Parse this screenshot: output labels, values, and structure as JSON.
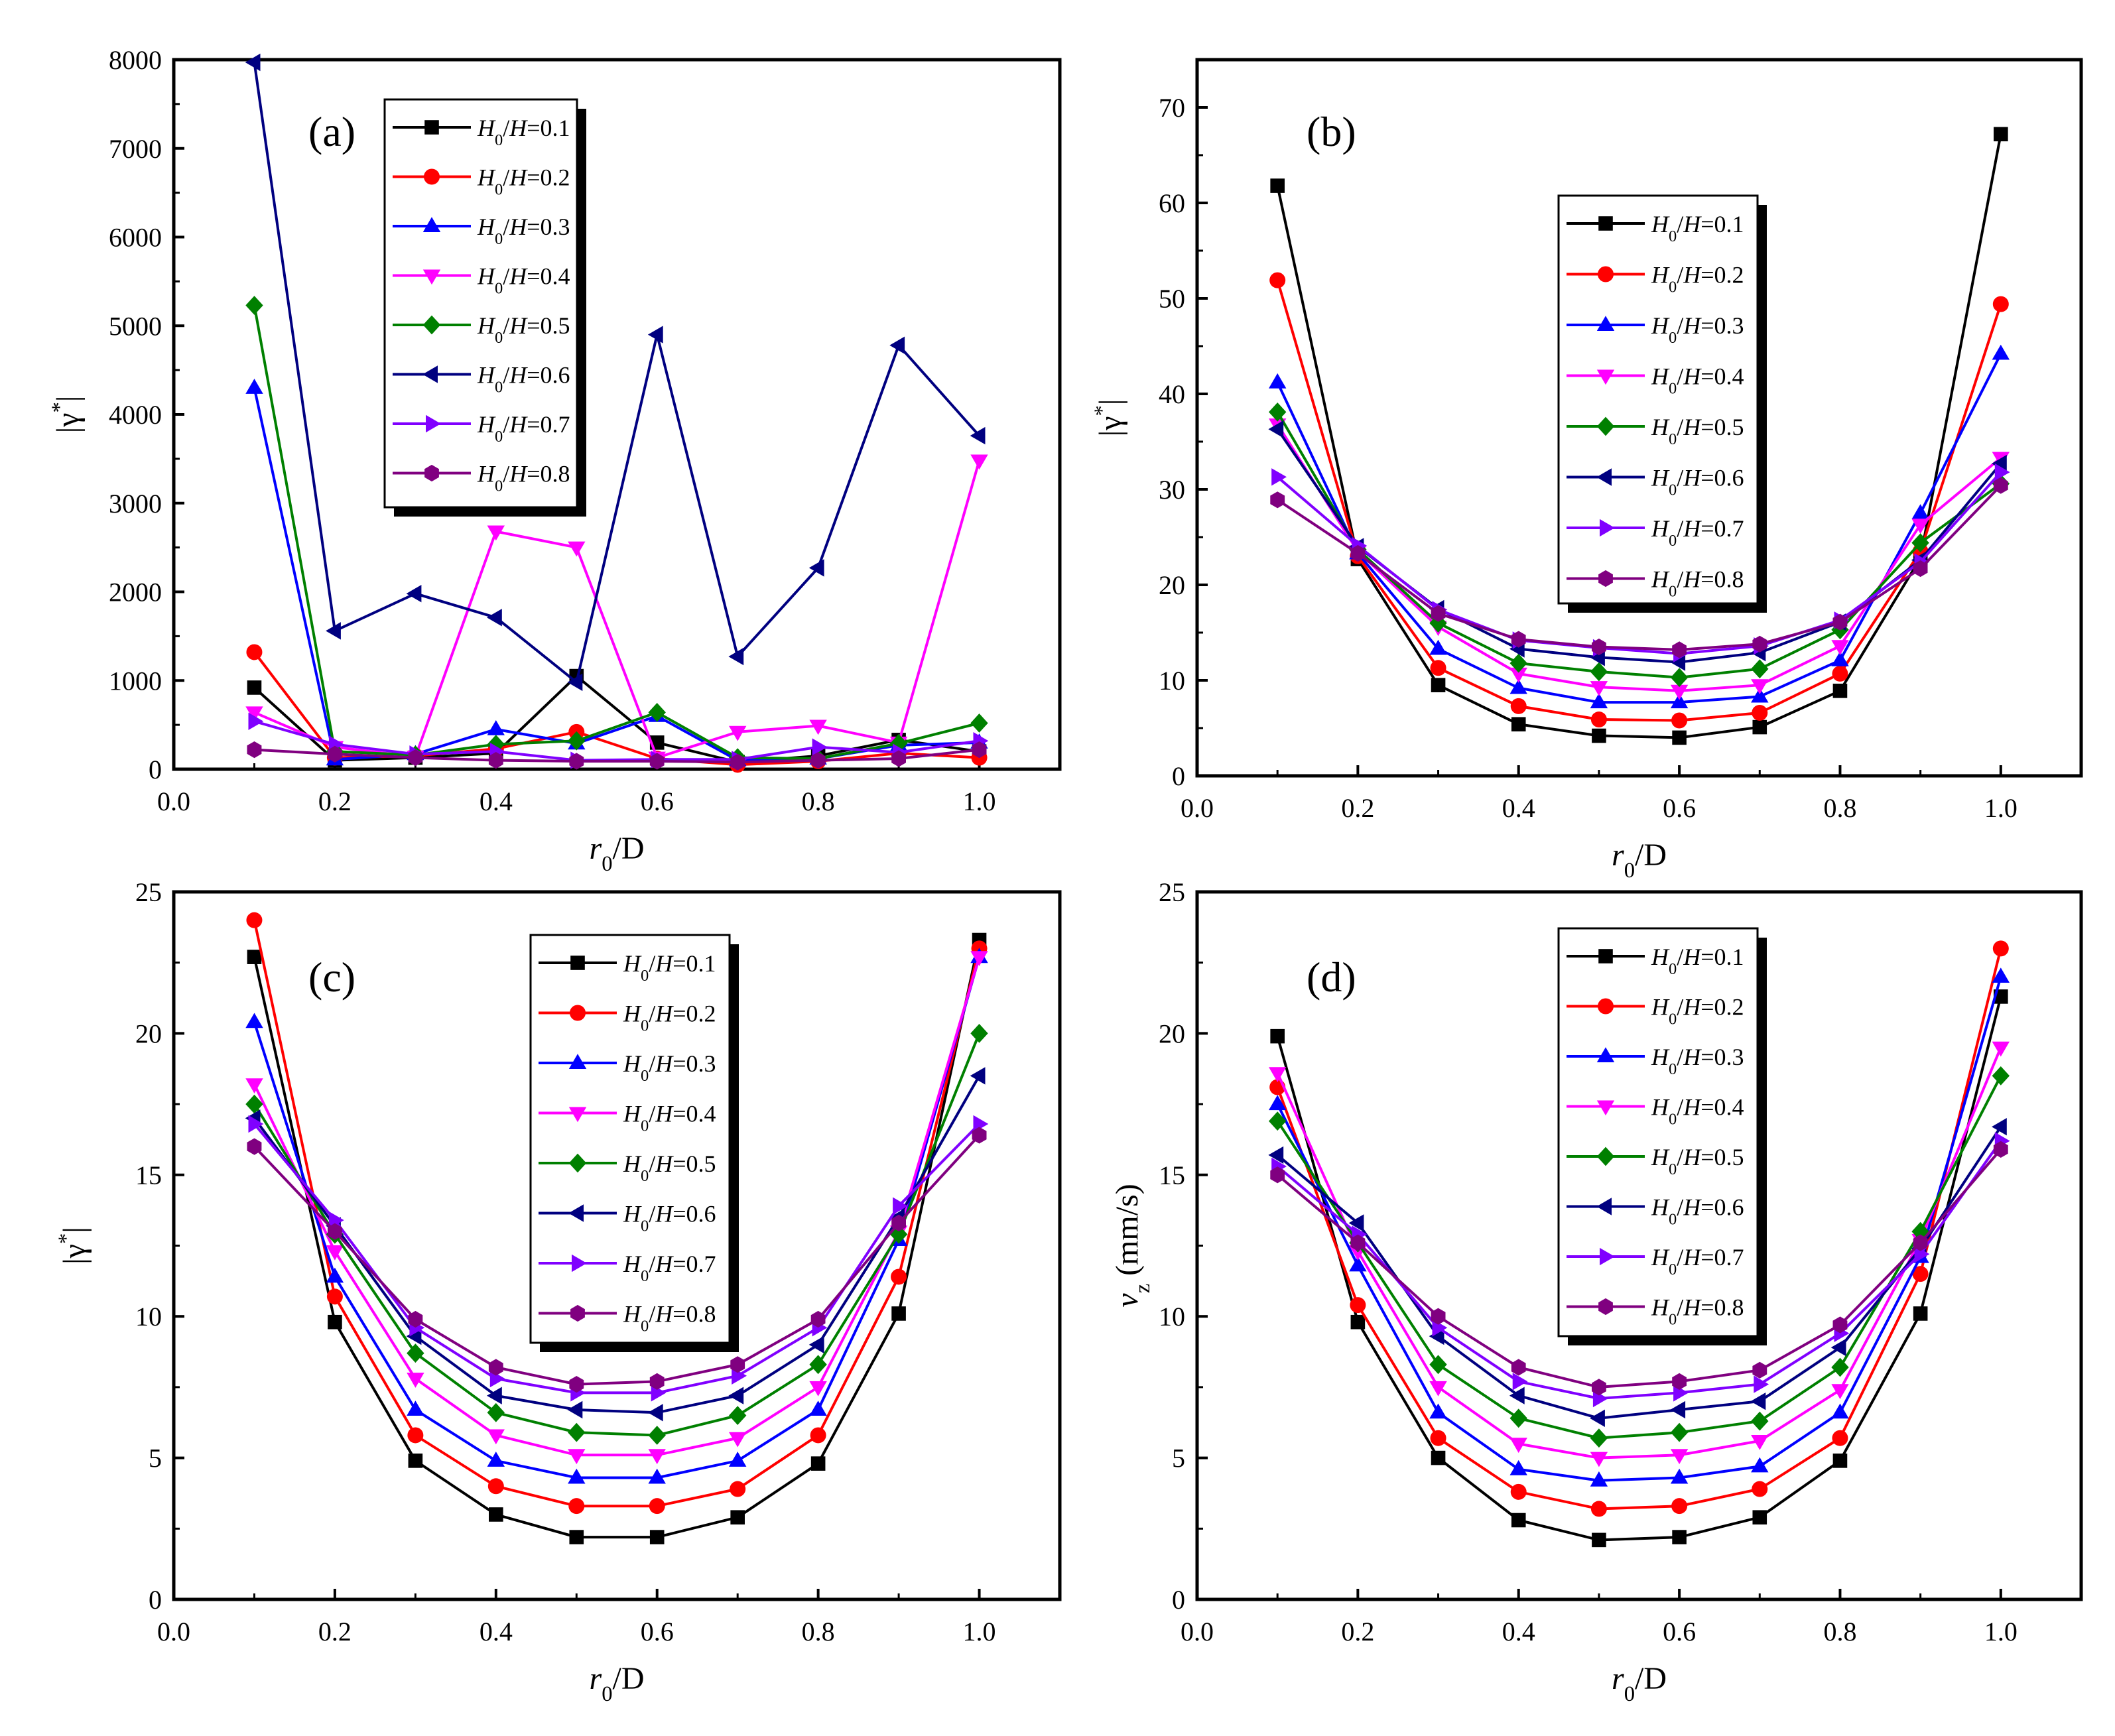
{
  "colors": {
    "s1": "#000000",
    "s2": "#ff0000",
    "s3": "#0000ff",
    "s4": "#ff00ff",
    "s5": "#008000",
    "s6": "#000080",
    "s7": "#8000ff",
    "s8": "#800080"
  },
  "legend_labels": [
    "H0/H=0.1",
    "H0/H=0.2",
    "H0/H=0.3",
    "H0/H=0.4",
    "H0/H=0.5",
    "H0/H=0.6",
    "H0/H=0.7",
    "H0/H=0.8"
  ],
  "chart_data": [
    {
      "panel": "(a)",
      "type": "line",
      "xlabel": "r0/D",
      "ylabel": "|γ*|",
      "xlim": [
        0.0,
        1.1
      ],
      "ylim": [
        0,
        8000
      ],
      "xticks": [
        "0.0",
        "0.2",
        "0.4",
        "0.6",
        "0.8",
        "1.0"
      ],
      "yticks": [
        "0",
        "1000",
        "2000",
        "3000",
        "4000",
        "5000",
        "6000",
        "7000",
        "8000"
      ],
      "x": [
        0.1,
        0.2,
        0.3,
        0.4,
        0.5,
        0.6,
        0.7,
        0.8,
        0.9,
        1.0
      ],
      "series": [
        {
          "name": "H0/H=0.1",
          "values": [
            920,
            100,
            130,
            180,
            1050,
            300,
            80,
            150,
            330,
            200
          ]
        },
        {
          "name": "H0/H=0.2",
          "values": [
            1320,
            130,
            150,
            230,
            420,
            120,
            50,
            90,
            180,
            130
          ]
        },
        {
          "name": "H0/H=0.3",
          "values": [
            4300,
            110,
            170,
            450,
            290,
            600,
            100,
            120,
            270,
            300
          ]
        },
        {
          "name": "H0/H=0.4",
          "values": [
            640,
            250,
            140,
            2680,
            2500,
            130,
            420,
            490,
            300,
            3480
          ]
        },
        {
          "name": "H0/H=0.5",
          "values": [
            5230,
            200,
            160,
            280,
            320,
            640,
            130,
            120,
            290,
            520
          ]
        },
        {
          "name": "H0/H=0.6",
          "values": [
            7970,
            1560,
            1980,
            1710,
            980,
            4900,
            1270,
            2270,
            4780,
            3760
          ]
        },
        {
          "name": "H0/H=0.7",
          "values": [
            540,
            280,
            170,
            200,
            100,
            110,
            110,
            250,
            190,
            320
          ]
        },
        {
          "name": "H0/H=0.8",
          "values": [
            220,
            170,
            130,
            100,
            90,
            90,
            80,
            100,
            120,
            220
          ]
        }
      ]
    },
    {
      "panel": "(b)",
      "type": "line",
      "xlabel": "r0/D",
      "ylabel": "|γ*|",
      "xlim": [
        0.0,
        1.1
      ],
      "ylim": [
        0,
        75
      ],
      "xticks": [
        "0.0",
        "0.2",
        "0.4",
        "0.6",
        "0.8",
        "1.0"
      ],
      "yticks": [
        "0",
        "10",
        "20",
        "30",
        "40",
        "50",
        "60",
        "70"
      ],
      "x": [
        0.1,
        0.2,
        0.3,
        0.4,
        0.5,
        0.6,
        0.7,
        0.8,
        0.9,
        1.0
      ],
      "series": [
        {
          "name": "H0/H=0.1",
          "values": [
            61.8,
            22.7,
            9.5,
            5.4,
            4.2,
            4.0,
            5.1,
            8.9,
            22.8,
            67.2
          ]
        },
        {
          "name": "H0/H=0.2",
          "values": [
            51.9,
            23.0,
            11.3,
            7.3,
            5.9,
            5.8,
            6.6,
            10.7,
            23.5,
            49.4
          ]
        },
        {
          "name": "H0/H=0.3",
          "values": [
            41.2,
            23.3,
            13.3,
            9.2,
            7.7,
            7.7,
            8.3,
            12.1,
            27.5,
            44.2
          ]
        },
        {
          "name": "H0/H=0.4",
          "values": [
            36.8,
            23.5,
            15.6,
            10.7,
            9.3,
            8.9,
            9.5,
            13.6,
            26.3,
            33.3
          ]
        },
        {
          "name": "H0/H=0.5",
          "values": [
            38.1,
            23.7,
            16.0,
            11.8,
            10.9,
            10.3,
            11.2,
            15.3,
            24.4,
            30.6
          ]
        },
        {
          "name": "H0/H=0.6",
          "values": [
            36.3,
            24.0,
            17.5,
            13.3,
            12.4,
            11.9,
            12.9,
            16.1,
            22.6,
            32.7
          ]
        },
        {
          "name": "H0/H=0.7",
          "values": [
            31.3,
            24.1,
            17.4,
            14.2,
            13.4,
            12.8,
            13.6,
            16.3,
            22.4,
            31.8
          ]
        },
        {
          "name": "H0/H=0.8",
          "values": [
            28.9,
            23.3,
            17.0,
            14.3,
            13.5,
            13.2,
            13.8,
            16.1,
            21.7,
            30.4
          ]
        }
      ]
    },
    {
      "panel": "(c)",
      "type": "line",
      "xlabel": "r0/D",
      "ylabel": "|γ*|",
      "xlim": [
        0.0,
        1.1
      ],
      "ylim": [
        0,
        25
      ],
      "xticks": [
        "0.0",
        "0.2",
        "0.4",
        "0.6",
        "0.8",
        "1.0"
      ],
      "yticks": [
        "0",
        "5",
        "10",
        "15",
        "20",
        "25"
      ],
      "x": [
        0.1,
        0.2,
        0.3,
        0.4,
        0.5,
        0.6,
        0.7,
        0.8,
        0.9,
        1.0
      ],
      "series": [
        {
          "name": "H0/H=0.1",
          "values": [
            22.7,
            9.8,
            4.9,
            3.0,
            2.2,
            2.2,
            2.9,
            4.8,
            10.1,
            23.3
          ]
        },
        {
          "name": "H0/H=0.2",
          "values": [
            24.0,
            10.7,
            5.8,
            4.0,
            3.3,
            3.3,
            3.9,
            5.8,
            11.4,
            23.0
          ]
        },
        {
          "name": "H0/H=0.3",
          "values": [
            20.4,
            11.4,
            6.7,
            4.9,
            4.3,
            4.3,
            4.9,
            6.7,
            12.7,
            22.7
          ]
        },
        {
          "name": "H0/H=0.4",
          "values": [
            18.2,
            12.3,
            7.8,
            5.8,
            5.1,
            5.1,
            5.7,
            7.5,
            13.0,
            22.7
          ]
        },
        {
          "name": "H0/H=0.5",
          "values": [
            17.5,
            12.9,
            8.7,
            6.6,
            5.9,
            5.8,
            6.5,
            8.3,
            12.9,
            20.0
          ]
        },
        {
          "name": "H0/H=0.6",
          "values": [
            17.0,
            13.2,
            9.3,
            7.2,
            6.7,
            6.6,
            7.2,
            9.0,
            13.5,
            18.5
          ]
        },
        {
          "name": "H0/H=0.7",
          "values": [
            16.8,
            13.4,
            9.6,
            7.8,
            7.3,
            7.3,
            7.9,
            9.6,
            13.9,
            16.8
          ]
        },
        {
          "name": "H0/H=0.8",
          "values": [
            16.0,
            13.0,
            9.9,
            8.2,
            7.6,
            7.7,
            8.3,
            9.9,
            13.3,
            16.4
          ]
        }
      ]
    },
    {
      "panel": "(d)",
      "type": "line",
      "xlabel": "r0/D",
      "ylabel": "vz (mm/s)",
      "xlim": [
        0.0,
        1.1
      ],
      "ylim": [
        0,
        25
      ],
      "xticks": [
        "0.0",
        "0.2",
        "0.4",
        "0.6",
        "0.8",
        "1.0"
      ],
      "yticks": [
        "0",
        "5",
        "10",
        "15",
        "20",
        "25"
      ],
      "x": [
        0.1,
        0.2,
        0.3,
        0.4,
        0.5,
        0.6,
        0.7,
        0.8,
        0.9,
        1.0
      ],
      "series": [
        {
          "name": "H0/H=0.1",
          "values": [
            19.9,
            9.8,
            5.0,
            2.8,
            2.1,
            2.2,
            2.9,
            4.9,
            10.1,
            21.3
          ]
        },
        {
          "name": "H0/H=0.2",
          "values": [
            18.1,
            10.4,
            5.7,
            3.8,
            3.2,
            3.3,
            3.9,
            5.7,
            11.5,
            23.0
          ]
        },
        {
          "name": "H0/H=0.3",
          "values": [
            17.5,
            11.8,
            6.6,
            4.6,
            4.2,
            4.3,
            4.7,
            6.6,
            12.1,
            22.0
          ]
        },
        {
          "name": "H0/H=0.4",
          "values": [
            18.6,
            12.3,
            7.5,
            5.5,
            5.0,
            5.1,
            5.6,
            7.4,
            12.7,
            19.5
          ]
        },
        {
          "name": "H0/H=0.5",
          "values": [
            16.9,
            12.6,
            8.3,
            6.4,
            5.7,
            5.9,
            6.3,
            8.2,
            13.0,
            18.5
          ]
        },
        {
          "name": "H0/H=0.6",
          "values": [
            15.7,
            13.3,
            9.3,
            7.2,
            6.4,
            6.7,
            7.0,
            8.9,
            12.4,
            16.7
          ]
        },
        {
          "name": "H0/H=0.7",
          "values": [
            15.3,
            12.9,
            9.6,
            7.7,
            7.1,
            7.3,
            7.6,
            9.4,
            12.2,
            16.2
          ]
        },
        {
          "name": "H0/H=0.8",
          "values": [
            15.0,
            12.6,
            10.0,
            8.2,
            7.5,
            7.7,
            8.1,
            9.7,
            12.6,
            15.9
          ]
        }
      ]
    }
  ]
}
